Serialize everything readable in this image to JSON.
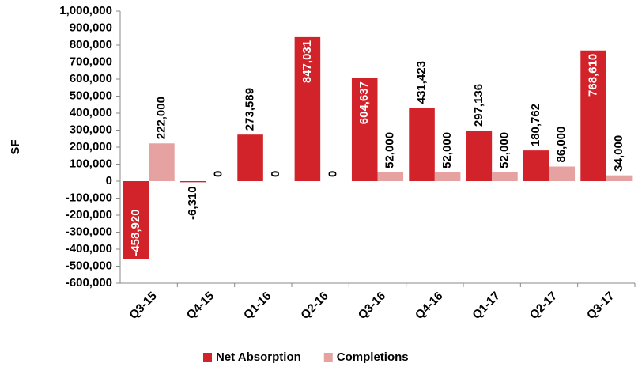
{
  "chart_data": {
    "type": "bar",
    "y_label": "SF",
    "categories": [
      "Q3-15",
      "Q4-15",
      "Q1-16",
      "Q2-16",
      "Q3-16",
      "Q4-16",
      "Q1-17",
      "Q2-17",
      "Q3-17"
    ],
    "series": [
      {
        "name": "Net Absorption",
        "color": "#d2232a",
        "values": [
          -458920,
          -6310,
          273589,
          847031,
          604637,
          431423,
          297136,
          180762,
          768610
        ],
        "value_labels": [
          "-458,920",
          "-6,310",
          "273,589",
          "847,031",
          "604,637",
          "431,423",
          "297,136",
          "180,762",
          "768,610"
        ]
      },
      {
        "name": "Completions",
        "color": "#e6a1a1",
        "values": [
          222000,
          0,
          0,
          0,
          52000,
          52000,
          52000,
          86000,
          34000
        ],
        "value_labels": [
          "222,000",
          "0",
          "0",
          "0",
          "52,000",
          "52,000",
          "52,000",
          "86,000",
          "34,000"
        ]
      }
    ],
    "ylim": [
      -600000,
      1000000
    ],
    "yticks": [
      {
        "value": -600000,
        "label": "-600,000"
      },
      {
        "value": -500000,
        "label": "-500,000"
      },
      {
        "value": -400000,
        "label": "-400,000"
      },
      {
        "value": -300000,
        "label": "-300,000"
      },
      {
        "value": -200000,
        "label": "-200,000"
      },
      {
        "value": -100000,
        "label": "-100,000"
      },
      0,
      {
        "value": 100000,
        "label": "100,000"
      },
      {
        "value": 200000,
        "label": "200,000"
      },
      {
        "value": 300000,
        "label": "300,000"
      },
      {
        "value": 400000,
        "label": "400,000"
      },
      {
        "value": 500000,
        "label": "500,000"
      },
      {
        "value": 600000,
        "label": "600,000"
      },
      {
        "value": 700000,
        "label": "700,000"
      },
      {
        "value": 800000,
        "label": "800,000"
      },
      {
        "value": 900000,
        "label": "900,000"
      },
      {
        "value": 1000000,
        "label": "1,000,000"
      }
    ],
    "grid": false,
    "legend": "bottom"
  }
}
